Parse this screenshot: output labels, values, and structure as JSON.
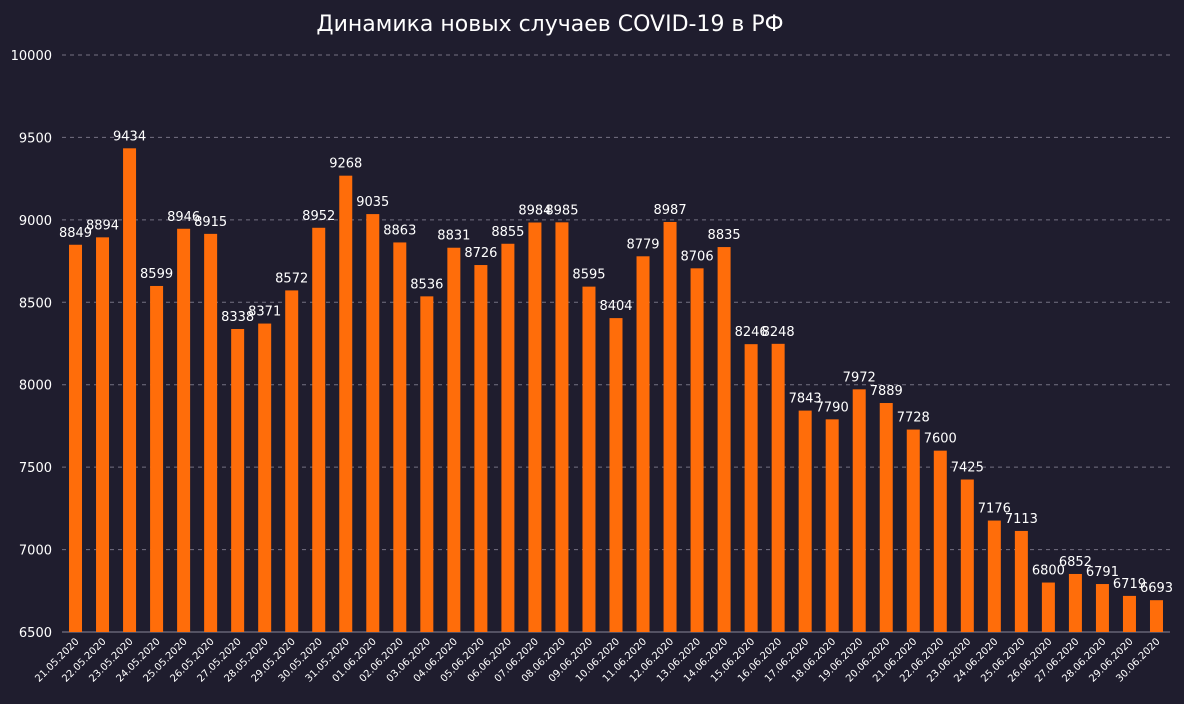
{
  "chart_data": {
    "type": "bar",
    "title": "Динамика новых случаев COVID-19 в РФ",
    "xlabel": "",
    "ylabel": "",
    "ylim": [
      6500,
      10000
    ],
    "yticks": [
      6500,
      7000,
      7500,
      8000,
      8500,
      9000,
      9500,
      10000
    ],
    "grid": true,
    "colors": {
      "bar": "#ff6d0a",
      "background": "#1f1d2e",
      "grid": "#8a8798",
      "text": "#ffffff"
    },
    "categories": [
      "21.05.2020",
      "22.05.2020",
      "23.05.2020",
      "24.05.2020",
      "25.05.2020",
      "26.05.2020",
      "27.05.2020",
      "28.05.2020",
      "29.05.2020",
      "30.05.2020",
      "31.05.2020",
      "01.06.2020",
      "02.06.2020",
      "03.06.2020",
      "04.06.2020",
      "05.06.2020",
      "06.06.2020",
      "07.06.2020",
      "08.06.2020",
      "09.06.2020",
      "10.06.2020",
      "11.06.2020",
      "12.06.2020",
      "13.06.2020",
      "14.06.2020",
      "15.06.2020",
      "16.06.2020",
      "17.06.2020",
      "18.06.2020",
      "19.06.2020",
      "20.06.2020",
      "21.06.2020",
      "22.06.2020",
      "23.06.2020",
      "24.06.2020",
      "25.06.2020",
      "26.06.2020",
      "27.06.2020",
      "28.06.2020",
      "29.06.2020",
      "30.06.2020"
    ],
    "values": [
      8849,
      8894,
      9434,
      8599,
      8946,
      8915,
      8338,
      8371,
      8572,
      8952,
      9268,
      9035,
      8863,
      8536,
      8831,
      8726,
      8855,
      8984,
      8985,
      8595,
      8404,
      8779,
      8987,
      8706,
      8835,
      8246,
      8248,
      7843,
      7790,
      7972,
      7889,
      7728,
      7600,
      7425,
      7176,
      7113,
      6800,
      6852,
      6791,
      6719,
      6693
    ]
  }
}
